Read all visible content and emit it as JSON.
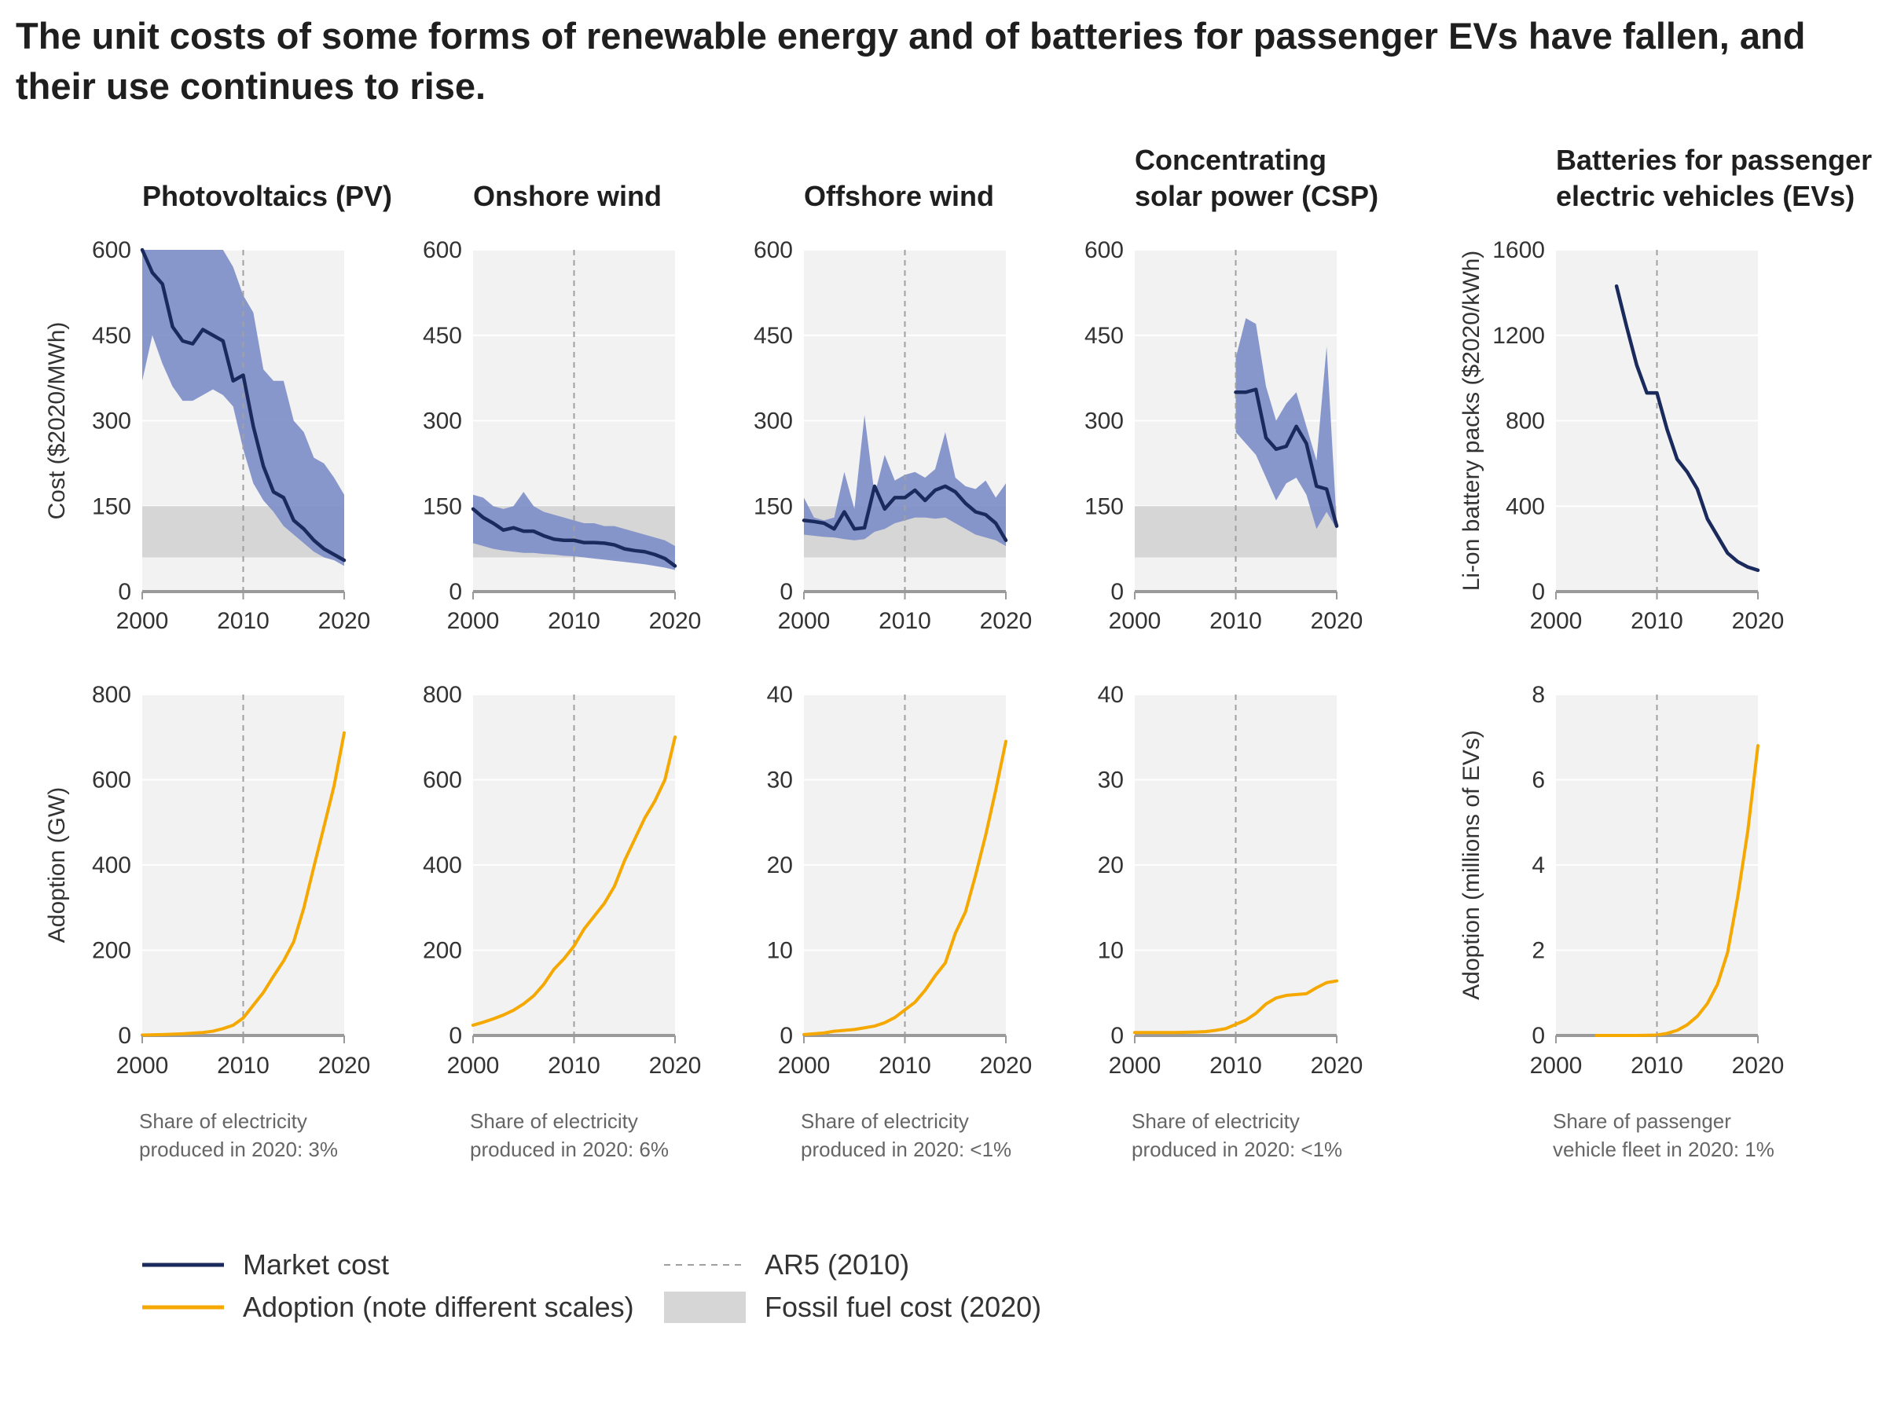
{
  "title": "The unit costs of some forms of renewable energy and of batteries for passenger EVs have fallen, and their use continues to rise.",
  "colors": {
    "market_cost": "#1b2a5c",
    "cost_range": "#7f8fc8",
    "adoption": "#f5a800",
    "fossil_fuel_band": "#d6d6d6",
    "ar5_line": "#a0a0a0",
    "panel_background": "#f2f2f2",
    "grid": "#ffffff",
    "baseline": "#9a9a9a"
  },
  "legend": {
    "items": [
      {
        "label": "Market cost",
        "kind": "line",
        "color": "#1b2a5c"
      },
      {
        "label": "Adoption (note different scales)",
        "kind": "line",
        "color": "#f5a800"
      },
      {
        "label": "AR5 (2010)",
        "kind": "dashed",
        "color": "#a0a0a0"
      },
      {
        "label": "Fossil fuel cost (2020)",
        "kind": "band",
        "color": "#d6d6d6"
      }
    ]
  },
  "chart_data": [
    {
      "type": "line",
      "panel": "Photovoltaics (PV)",
      "row": "cost",
      "title": [
        "Photovoltaics (PV)"
      ],
      "ylabel": "Cost ($2020/MWh)",
      "ylim": [
        0,
        600
      ],
      "yticks": [
        0,
        150,
        300,
        450,
        600
      ],
      "xlim": [
        2000,
        2020
      ],
      "xticks": [
        2000,
        2010,
        2020
      ],
      "ar5_year": 2010,
      "fossil_band": [
        60,
        150
      ],
      "range": {
        "x": [
          2000,
          2001,
          2002,
          2003,
          2004,
          2005,
          2006,
          2007,
          2008,
          2009,
          2010,
          2011,
          2012,
          2013,
          2014,
          2015,
          2016,
          2017,
          2018,
          2019,
          2020
        ],
        "low": [
          370,
          450,
          400,
          360,
          335,
          335,
          345,
          355,
          345,
          325,
          250,
          190,
          160,
          140,
          115,
          100,
          85,
          70,
          60,
          55,
          45
        ],
        "high": [
          620,
          620,
          620,
          620,
          620,
          620,
          620,
          620,
          620,
          570,
          520,
          490,
          390,
          370,
          370,
          300,
          280,
          235,
          225,
          200,
          170
        ]
      },
      "series": [
        {
          "name": "Market cost",
          "x": [
            2000,
            2001,
            2002,
            2003,
            2004,
            2005,
            2006,
            2007,
            2008,
            2009,
            2010,
            2011,
            2012,
            2013,
            2014,
            2015,
            2016,
            2017,
            2018,
            2019,
            2020
          ],
          "y": [
            600,
            560,
            540,
            465,
            440,
            435,
            460,
            450,
            440,
            370,
            380,
            290,
            220,
            175,
            165,
            125,
            110,
            90,
            75,
            65,
            55
          ]
        }
      ],
      "note": [
        "Share of electricity",
        "produced in 2020: 3%"
      ]
    },
    {
      "type": "line",
      "panel": "Onshore wind",
      "row": "cost",
      "title": [
        "Onshore wind"
      ],
      "ylabel": "",
      "ylim": [
        0,
        600
      ],
      "yticks": [
        0,
        150,
        300,
        450,
        600
      ],
      "xlim": [
        2000,
        2020
      ],
      "xticks": [
        2000,
        2010,
        2020
      ],
      "ar5_year": 2010,
      "fossil_band": [
        60,
        150
      ],
      "range": {
        "x": [
          2000,
          2001,
          2002,
          2003,
          2004,
          2005,
          2006,
          2007,
          2008,
          2009,
          2010,
          2011,
          2012,
          2013,
          2014,
          2015,
          2016,
          2017,
          2018,
          2019,
          2020
        ],
        "low": [
          85,
          80,
          75,
          72,
          70,
          68,
          68,
          66,
          65,
          63,
          62,
          60,
          58,
          56,
          54,
          52,
          50,
          48,
          45,
          42,
          38
        ],
        "high": [
          170,
          165,
          150,
          145,
          150,
          175,
          150,
          140,
          135,
          130,
          125,
          120,
          120,
          115,
          115,
          110,
          105,
          100,
          95,
          90,
          80
        ]
      },
      "series": [
        {
          "name": "Market cost",
          "x": [
            2000,
            2001,
            2002,
            2003,
            2004,
            2005,
            2006,
            2007,
            2008,
            2009,
            2010,
            2011,
            2012,
            2013,
            2014,
            2015,
            2016,
            2017,
            2018,
            2019,
            2020
          ],
          "y": [
            145,
            130,
            120,
            108,
            112,
            106,
            106,
            98,
            92,
            90,
            90,
            86,
            86,
            85,
            82,
            75,
            72,
            70,
            65,
            58,
            45
          ]
        }
      ],
      "note": [
        "Share of electricity",
        "produced in 2020: 6%"
      ]
    },
    {
      "type": "line",
      "panel": "Offshore wind",
      "row": "cost",
      "title": [
        "Offshore wind"
      ],
      "ylabel": "",
      "ylim": [
        0,
        600
      ],
      "yticks": [
        0,
        150,
        300,
        450,
        600
      ],
      "xlim": [
        2000,
        2020
      ],
      "xticks": [
        2000,
        2010,
        2020
      ],
      "ar5_year": 2010,
      "fossil_band": [
        60,
        150
      ],
      "range": {
        "x": [
          2000,
          2001,
          2002,
          2003,
          2004,
          2005,
          2006,
          2007,
          2008,
          2009,
          2010,
          2011,
          2012,
          2013,
          2014,
          2015,
          2016,
          2017,
          2018,
          2019,
          2020
        ],
        "low": [
          100,
          98,
          96,
          95,
          92,
          90,
          92,
          105,
          110,
          120,
          125,
          130,
          130,
          128,
          130,
          120,
          110,
          100,
          95,
          90,
          80
        ],
        "high": [
          165,
          130,
          125,
          130,
          210,
          145,
          310,
          170,
          240,
          195,
          205,
          210,
          200,
          215,
          280,
          200,
          185,
          180,
          195,
          165,
          190
        ]
      },
      "series": [
        {
          "name": "Market cost",
          "x": [
            2000,
            2001,
            2002,
            2003,
            2004,
            2005,
            2006,
            2007,
            2008,
            2009,
            2010,
            2011,
            2012,
            2013,
            2014,
            2015,
            2016,
            2017,
            2018,
            2019,
            2020
          ],
          "y": [
            125,
            123,
            120,
            110,
            140,
            110,
            112,
            185,
            145,
            165,
            165,
            178,
            160,
            178,
            185,
            175,
            155,
            140,
            135,
            120,
            90
          ]
        }
      ],
      "note": [
        "Share of electricity",
        "produced in 2020: <1%"
      ]
    },
    {
      "type": "line",
      "panel": "Concentrating solar power (CSP)",
      "row": "cost",
      "title": [
        "Concentrating",
        "solar power (CSP)"
      ],
      "ylabel": "",
      "ylim": [
        0,
        600
      ],
      "yticks": [
        0,
        150,
        300,
        450,
        600
      ],
      "xlim": [
        2000,
        2020
      ],
      "xticks": [
        2000,
        2010,
        2020
      ],
      "ar5_year": 2010,
      "fossil_band": [
        60,
        150
      ],
      "range": {
        "x": [
          2010,
          2011,
          2012,
          2013,
          2014,
          2015,
          2016,
          2017,
          2018,
          2019,
          2020
        ],
        "low": [
          280,
          260,
          240,
          200,
          160,
          190,
          200,
          170,
          110,
          140,
          110
        ],
        "high": [
          410,
          480,
          470,
          360,
          300,
          330,
          350,
          290,
          230,
          430,
          120
        ]
      },
      "series": [
        {
          "name": "Market cost",
          "x": [
            2010,
            2011,
            2012,
            2013,
            2014,
            2015,
            2016,
            2017,
            2018,
            2019,
            2020
          ],
          "y": [
            350,
            350,
            355,
            270,
            250,
            255,
            290,
            260,
            185,
            180,
            115
          ]
        }
      ],
      "note": [
        "Share of electricity",
        "produced in 2020: <1%"
      ]
    },
    {
      "type": "line",
      "panel": "Batteries for passenger electric vehicles (EVs)",
      "row": "cost",
      "title": [
        "Batteries for passenger",
        "electric vehicles (EVs)"
      ],
      "ylabel": "Li-on battery packs ($2020/kWh)",
      "ylim": [
        0,
        1600
      ],
      "yticks": [
        0,
        400,
        800,
        1200,
        1600
      ],
      "xlim": [
        2000,
        2020
      ],
      "xticks": [
        2000,
        2010,
        2020
      ],
      "ar5_year": 2010,
      "fossil_band": null,
      "range": null,
      "series": [
        {
          "name": "Market cost",
          "x": [
            2006,
            2007,
            2008,
            2009,
            2010,
            2011,
            2012,
            2013,
            2014,
            2015,
            2016,
            2017,
            2018,
            2019,
            2020
          ],
          "y": [
            1430,
            1240,
            1060,
            930,
            930,
            760,
            620,
            560,
            480,
            340,
            260,
            180,
            140,
            115,
            100
          ]
        }
      ],
      "note": [
        "Share of passenger",
        "vehicle fleet in 2020: 1%"
      ]
    },
    {
      "type": "line",
      "panel": "Photovoltaics (PV)",
      "row": "adoption",
      "ylabel": "Adoption (GW)",
      "ylim": [
        0,
        800
      ],
      "yticks": [
        0,
        200,
        400,
        600,
        800
      ],
      "xlim": [
        2000,
        2020
      ],
      "xticks": [
        2000,
        2010,
        2020
      ],
      "ar5_year": 2010,
      "series": [
        {
          "name": "Adoption",
          "x": [
            2000,
            2002,
            2004,
            2006,
            2007,
            2008,
            2009,
            2010,
            2011,
            2012,
            2013,
            2014,
            2015,
            2016,
            2017,
            2018,
            2019,
            2020
          ],
          "y": [
            1,
            2,
            4,
            7,
            10,
            16,
            24,
            41,
            71,
            101,
            139,
            175,
            220,
            299,
            396,
            490,
            586,
            710
          ]
        }
      ]
    },
    {
      "type": "line",
      "panel": "Onshore wind",
      "row": "adoption",
      "ylabel": "",
      "ylim": [
        0,
        800
      ],
      "yticks": [
        0,
        200,
        400,
        600,
        800
      ],
      "xlim": [
        2000,
        2020
      ],
      "xticks": [
        2000,
        2010,
        2020
      ],
      "ar5_year": 2010,
      "series": [
        {
          "name": "Adoption",
          "x": [
            2000,
            2001,
            2002,
            2003,
            2004,
            2005,
            2006,
            2007,
            2008,
            2009,
            2010,
            2011,
            2012,
            2013,
            2014,
            2015,
            2016,
            2017,
            2018,
            2019,
            2020
          ],
          "y": [
            24,
            31,
            39,
            48,
            59,
            74,
            93,
            120,
            155,
            180,
            210,
            250,
            280,
            310,
            350,
            410,
            460,
            510,
            550,
            600,
            700
          ]
        }
      ]
    },
    {
      "type": "line",
      "panel": "Offshore wind",
      "row": "adoption",
      "ylabel": "",
      "ylim": [
        0,
        40
      ],
      "yticks": [
        0,
        10,
        20,
        30,
        40
      ],
      "xlim": [
        2000,
        2020
      ],
      "xticks": [
        2000,
        2010,
        2020
      ],
      "ar5_year": 2010,
      "series": [
        {
          "name": "Adoption",
          "x": [
            2000,
            2001,
            2002,
            2003,
            2004,
            2005,
            2006,
            2007,
            2008,
            2009,
            2010,
            2011,
            2012,
            2013,
            2014,
            2015,
            2016,
            2017,
            2018,
            2019,
            2020
          ],
          "y": [
            0.1,
            0.2,
            0.3,
            0.5,
            0.6,
            0.7,
            0.9,
            1.1,
            1.5,
            2.1,
            3.0,
            3.9,
            5.3,
            7.0,
            8.5,
            12.0,
            14.5,
            18.8,
            23.5,
            28.8,
            34.5
          ]
        }
      ]
    },
    {
      "type": "line",
      "panel": "Concentrating solar power (CSP)",
      "row": "adoption",
      "ylabel": "",
      "ylim": [
        0,
        40
      ],
      "yticks": [
        0,
        10,
        20,
        30,
        40
      ],
      "xlim": [
        2000,
        2020
      ],
      "xticks": [
        2000,
        2010,
        2020
      ],
      "ar5_year": 2010,
      "series": [
        {
          "name": "Adoption",
          "x": [
            2000,
            2002,
            2004,
            2006,
            2007,
            2008,
            2009,
            2010,
            2011,
            2012,
            2013,
            2014,
            2015,
            2016,
            2017,
            2018,
            2019,
            2020
          ],
          "y": [
            0.35,
            0.35,
            0.35,
            0.4,
            0.45,
            0.6,
            0.8,
            1.3,
            1.8,
            2.6,
            3.7,
            4.4,
            4.7,
            4.8,
            4.9,
            5.6,
            6.2,
            6.4
          ]
        }
      ]
    },
    {
      "type": "line",
      "panel": "Batteries for passenger electric vehicles (EVs)",
      "row": "adoption",
      "ylabel": "Adoption (millions of EVs)",
      "ylim": [
        0,
        8
      ],
      "yticks": [
        0,
        2,
        4,
        6,
        8
      ],
      "xlim": [
        2000,
        2020
      ],
      "xticks": [
        2000,
        2010,
        2020
      ],
      "ar5_year": 2010,
      "series": [
        {
          "name": "Adoption",
          "x": [
            2004,
            2008,
            2010,
            2011,
            2012,
            2013,
            2014,
            2015,
            2016,
            2017,
            2018,
            2019,
            2020
          ],
          "y": [
            0.0,
            0.0,
            0.01,
            0.05,
            0.12,
            0.25,
            0.45,
            0.75,
            1.2,
            1.95,
            3.25,
            4.8,
            6.8
          ]
        }
      ]
    }
  ]
}
